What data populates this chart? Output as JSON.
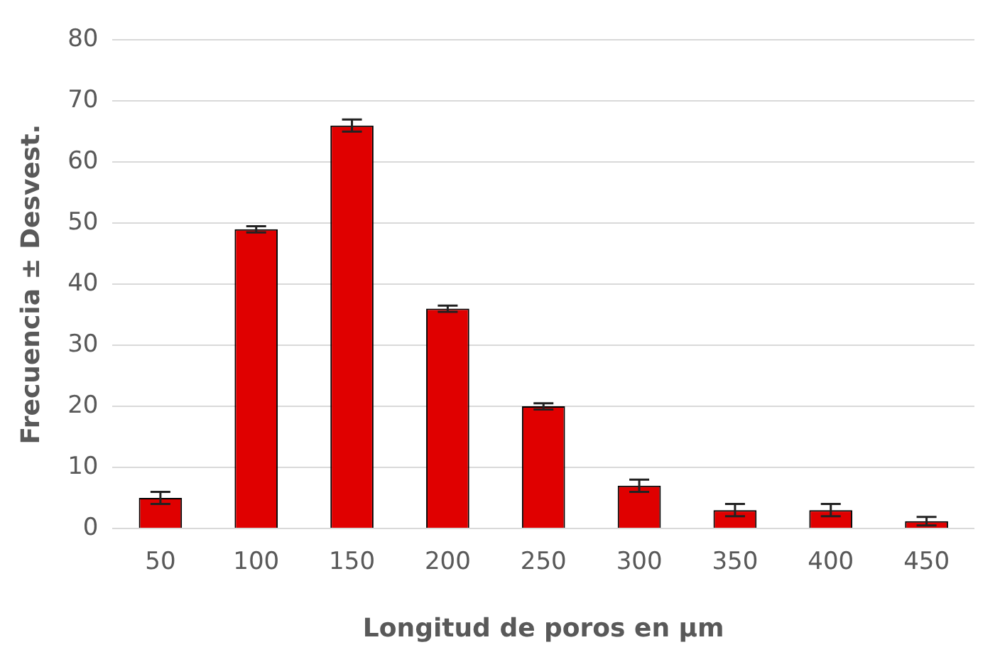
{
  "chart_data": {
    "type": "bar",
    "xlabel": "Longitud de poros en µm",
    "ylabel": "Frecuencia ± Desvest.",
    "categories": [
      "50",
      "100",
      "150",
      "200",
      "250",
      "300",
      "350",
      "400",
      "450"
    ],
    "series": [
      {
        "color": "#e00000",
        "values": [
          5,
          49,
          66,
          36,
          20,
          7,
          3,
          3,
          1.2
        ],
        "errors": [
          1,
          0.5,
          1,
          0.5,
          0.5,
          1,
          1,
          1,
          0.7
        ]
      }
    ],
    "ylim": [
      0,
      80
    ],
    "yticks": [
      0,
      10,
      20,
      30,
      40,
      50,
      60,
      70,
      80
    ],
    "grid": "y",
    "legend": false
  }
}
